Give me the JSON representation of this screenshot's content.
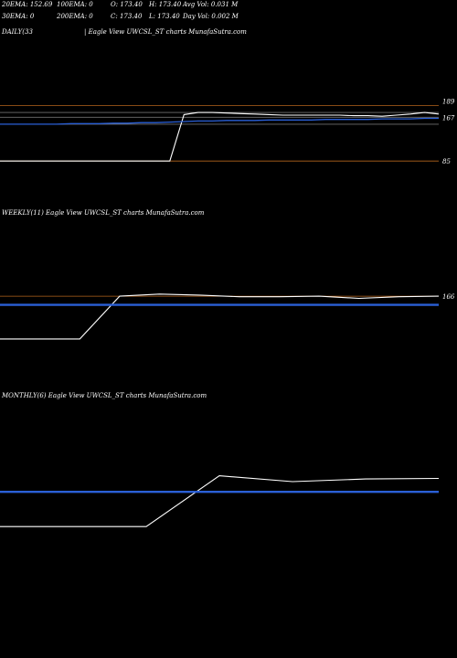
{
  "header": {
    "row1": {
      "ema20": "20EMA: 152.69",
      "ema100": "100EMA: 0",
      "open": "O: 173.40",
      "high": "H: 173.40",
      "avg_vol": "Avg Vol: 0.031 M"
    },
    "row2": {
      "ema30": "30EMA: 0",
      "ema200": "200EMA: 0",
      "close": "C: 173.40",
      "low": "L: 173.40",
      "day_vol": "Day Vol: 0.002 M"
    }
  },
  "panels": {
    "daily": {
      "label": "DAILY(33",
      "title": "| Eagle   View  UWCSL_ST charts MunafaSutra.com"
    },
    "weekly": {
      "label": "WEEKLY(11) Eagle   View  UWCSL_ST charts MunafaSutra.com"
    },
    "monthly": {
      "label": "MONTHLY(6) Eagle   View  UWCSL_ST charts MunafaSutra.com"
    }
  },
  "colors": {
    "background": "#000000",
    "price": "#ffffff",
    "ema_blue": "#2a5fd6",
    "level_line": "#b5651d",
    "gray_line": "#707070"
  },
  "chart_data": [
    {
      "type": "line",
      "panel": "daily",
      "price_axis_labels": [
        "189",
        "167",
        "85"
      ],
      "series": [
        {
          "values": [
            85,
            85,
            85,
            85,
            85,
            85,
            85,
            85,
            85,
            85,
            85,
            85,
            85,
            172,
            176,
            176,
            175,
            174,
            173,
            172,
            171,
            171,
            171,
            171,
            171,
            170,
            170,
            169,
            171,
            173,
            176,
            173
          ]
        },
        {
          "values": [
            154,
            154,
            154,
            154,
            154,
            155,
            155,
            155,
            156,
            156,
            157,
            157,
            158,
            159,
            160,
            160,
            161,
            161,
            161,
            162,
            162,
            162,
            162,
            163,
            163,
            163,
            163,
            164,
            164,
            164,
            165,
            165
          ]
        }
      ],
      "levels": [
        189,
        176,
        167,
        154,
        85
      ],
      "ylim": [
        75,
        195
      ]
    },
    {
      "type": "line",
      "panel": "weekly",
      "price_axis_labels": [
        "166"
      ],
      "series": [
        {
          "values": [
            87,
            87,
            87,
            166,
            170,
            168,
            165,
            165,
            166,
            162,
            165,
            166
          ]
        },
        {
          "values": [
            150,
            150,
            150,
            150,
            150,
            150,
            150,
            150,
            150,
            150,
            150,
            150
          ]
        }
      ],
      "levels": [
        166,
        150
      ],
      "ylim": [
        75,
        200
      ]
    },
    {
      "type": "line",
      "panel": "monthly",
      "price_axis_labels": [],
      "series": [
        {
          "values": [
            80,
            80,
            80,
            175,
            164,
            169,
            170
          ]
        },
        {
          "values": [
            145,
            145,
            145,
            145,
            145,
            145,
            145
          ]
        }
      ],
      "ylim": [
        70,
        200
      ]
    }
  ]
}
